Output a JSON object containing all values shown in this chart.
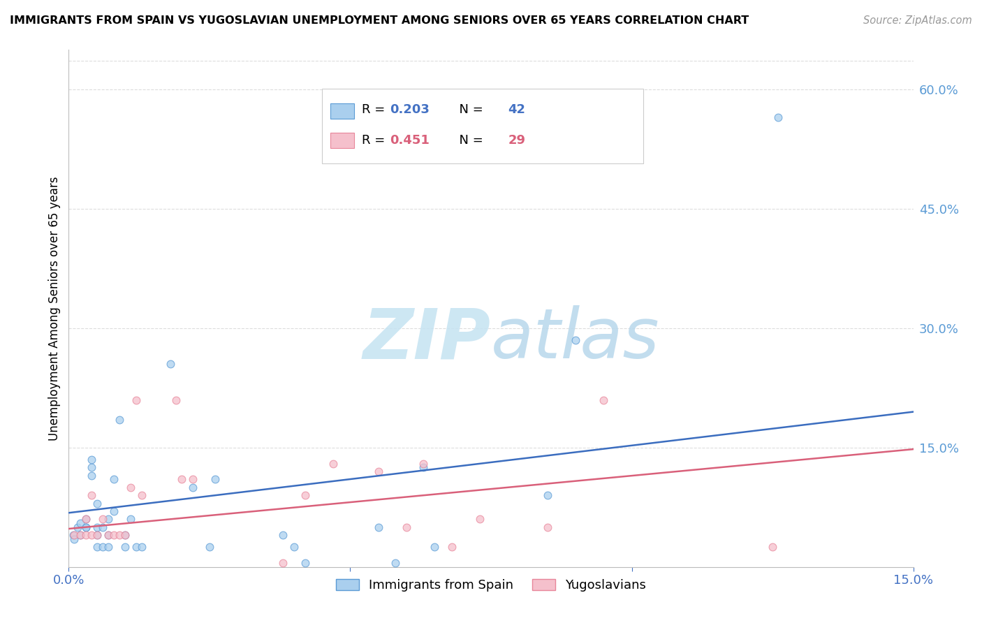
{
  "title": "IMMIGRANTS FROM SPAIN VS YUGOSLAVIAN UNEMPLOYMENT AMONG SENIORS OVER 65 YEARS CORRELATION CHART",
  "source": "Source: ZipAtlas.com",
  "ylabel": "Unemployment Among Seniors over 65 years",
  "right_yticks": [
    "60.0%",
    "45.0%",
    "30.0%",
    "15.0%"
  ],
  "right_ytick_vals": [
    0.6,
    0.45,
    0.3,
    0.15
  ],
  "xlim": [
    0.0,
    0.15
  ],
  "ylim": [
    0.0,
    0.65
  ],
  "color_blue_fill": "#aacfee",
  "color_pink_fill": "#f5c0cc",
  "color_blue_edge": "#5b9bd5",
  "color_pink_edge": "#e8869a",
  "color_blue_line": "#3b6dbf",
  "color_pink_line": "#d9607a",
  "color_blue_text": "#4472c4",
  "color_pink_text": "#d9607a",
  "color_right_axis": "#5b9bd5",
  "watermark_color": "#cde8f5",
  "legend_r1_val": "0.203",
  "legend_r1_n": "42",
  "legend_r2_val": "0.451",
  "legend_r2_n": "29",
  "spain_x": [
    0.0008,
    0.001,
    0.0015,
    0.002,
    0.002,
    0.003,
    0.003,
    0.003,
    0.004,
    0.004,
    0.004,
    0.005,
    0.005,
    0.005,
    0.005,
    0.006,
    0.006,
    0.007,
    0.007,
    0.007,
    0.008,
    0.008,
    0.009,
    0.01,
    0.01,
    0.011,
    0.012,
    0.013,
    0.018,
    0.022,
    0.025,
    0.026,
    0.038,
    0.04,
    0.042,
    0.055,
    0.058,
    0.063,
    0.065,
    0.085,
    0.09,
    0.126
  ],
  "spain_y": [
    0.04,
    0.035,
    0.05,
    0.04,
    0.055,
    0.05,
    0.05,
    0.06,
    0.115,
    0.125,
    0.135,
    0.025,
    0.04,
    0.05,
    0.08,
    0.025,
    0.05,
    0.025,
    0.04,
    0.06,
    0.07,
    0.11,
    0.185,
    0.025,
    0.04,
    0.06,
    0.025,
    0.025,
    0.255,
    0.1,
    0.025,
    0.11,
    0.04,
    0.025,
    0.005,
    0.05,
    0.005,
    0.125,
    0.025,
    0.09,
    0.285,
    0.565
  ],
  "yugo_x": [
    0.001,
    0.002,
    0.003,
    0.003,
    0.004,
    0.004,
    0.005,
    0.006,
    0.007,
    0.008,
    0.009,
    0.01,
    0.011,
    0.012,
    0.013,
    0.019,
    0.02,
    0.022,
    0.038,
    0.042,
    0.047,
    0.055,
    0.06,
    0.063,
    0.068,
    0.073,
    0.085,
    0.095,
    0.125
  ],
  "yugo_y": [
    0.04,
    0.04,
    0.04,
    0.06,
    0.04,
    0.09,
    0.04,
    0.06,
    0.04,
    0.04,
    0.04,
    0.04,
    0.1,
    0.21,
    0.09,
    0.21,
    0.11,
    0.11,
    0.005,
    0.09,
    0.13,
    0.12,
    0.05,
    0.13,
    0.025,
    0.06,
    0.05,
    0.21,
    0.025
  ],
  "spain_trend": [
    0.068,
    0.195
  ],
  "yugo_trend": [
    0.048,
    0.148
  ],
  "grid_color": "#dddddd",
  "spine_color": "#bbbbbb"
}
